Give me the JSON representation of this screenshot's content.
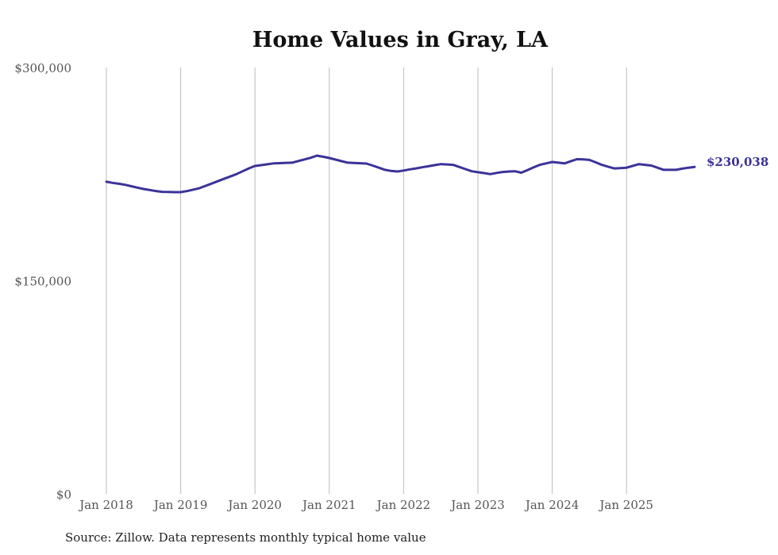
{
  "chart_data": {
    "type": "line",
    "title": "Home Values in Gray, LA",
    "xlabel": "",
    "ylabel": "",
    "ylim": [
      0,
      300000
    ],
    "y_ticks": [
      0,
      150000,
      300000
    ],
    "y_tick_labels": [
      "$0",
      "$150,000",
      "$300,000"
    ],
    "x_tick_labels": [
      "Jan 2018",
      "Jan 2019",
      "Jan 2020",
      "Jan 2021",
      "Jan 2022",
      "Jan 2023",
      "Jan 2024",
      "Jan 2025"
    ],
    "x_start": "Jan 2018",
    "x_unit": "month",
    "grid": "vertical",
    "series": [
      {
        "name": "Typical home value",
        "color": "#3b3399",
        "end_label": "$230,038",
        "values": [
          219600,
          218800,
          218200,
          217500,
          216500,
          215500,
          214500,
          213800,
          213100,
          212500,
          212400,
          212300,
          212300,
          213000,
          214000,
          215000,
          216700,
          218300,
          220000,
          221700,
          223300,
          225000,
          227000,
          229000,
          230700,
          231300,
          231900,
          232500,
          232700,
          232900,
          233000,
          234200,
          235300,
          236500,
          238000,
          237200,
          236300,
          235200,
          234100,
          233000,
          232800,
          232600,
          232400,
          231000,
          229500,
          228000,
          227200,
          226800,
          227500,
          228300,
          229000,
          229800,
          230500,
          231300,
          232000,
          231800,
          231500,
          230000,
          228500,
          227000,
          226300,
          225700,
          225000,
          225800,
          226500,
          226800,
          227000,
          226000,
          227800,
          229700,
          231500,
          232500,
          233500,
          233000,
          232500,
          234000,
          235500,
          235300,
          235000,
          233300,
          231500,
          230200,
          229000,
          229200,
          229500,
          230800,
          232000,
          231500,
          231000,
          229500,
          228000,
          228000,
          228000,
          228800,
          229500,
          230038
        ]
      }
    ],
    "source": "Source: Zillow. Data represents monthly typical home value"
  }
}
